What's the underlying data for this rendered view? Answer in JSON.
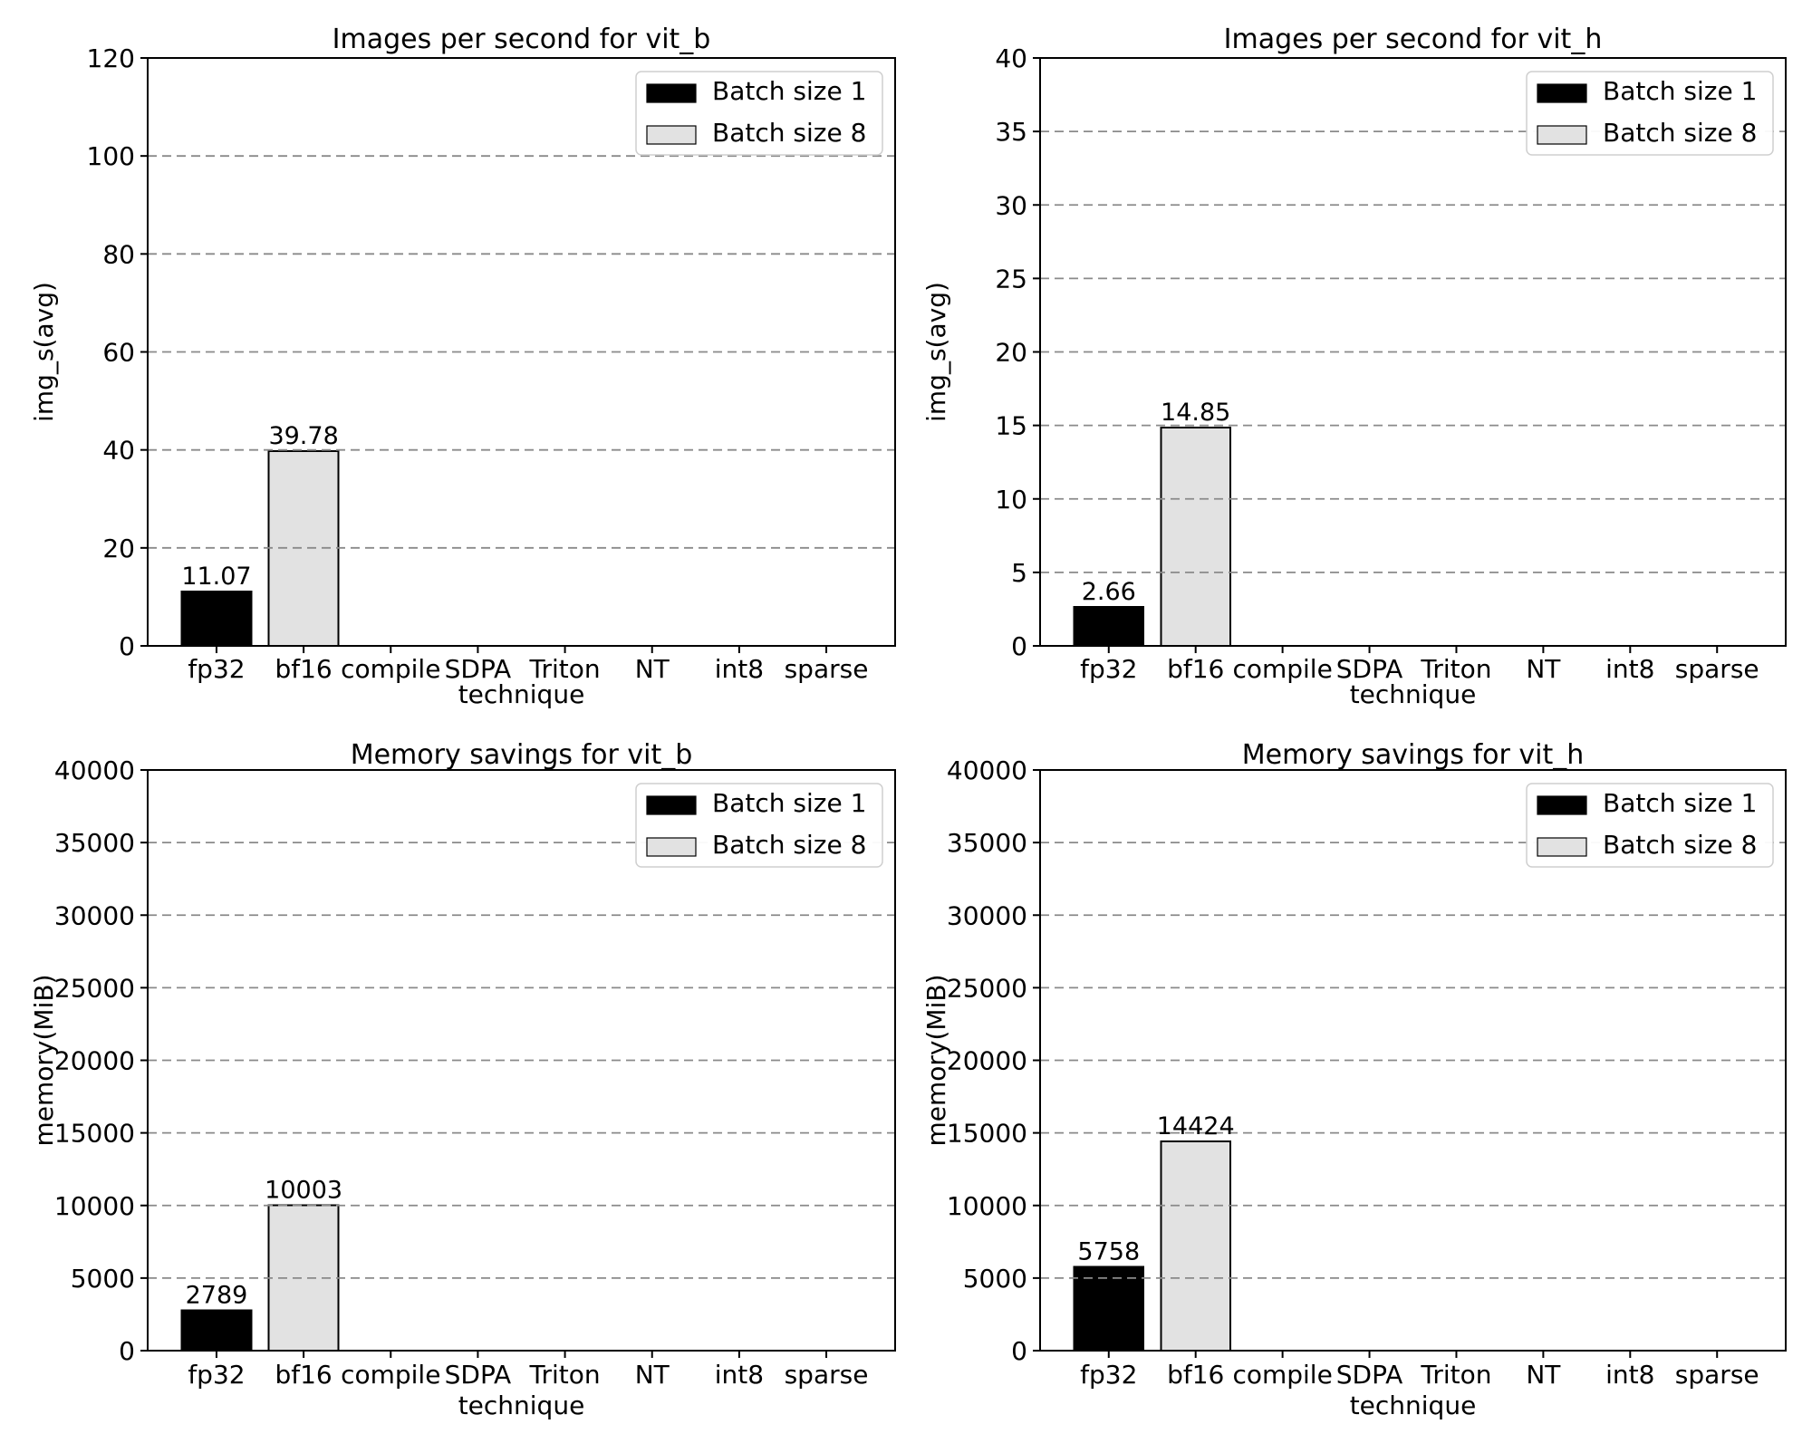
{
  "figure": {
    "background": "#ffffff",
    "text_color": "#000000",
    "grid_color": "#8a8a8a",
    "frame_color": "#000000"
  },
  "legend": {
    "entries": [
      {
        "label": "Batch size 1",
        "color": "#000000"
      },
      {
        "label": "Batch size 8",
        "color": "#e2e2e2"
      }
    ],
    "position": "upper right"
  },
  "chart_data": [
    {
      "type": "bar",
      "title": "Images per second for vit_b",
      "xlabel": "technique",
      "ylabel": "img_s(avg)",
      "categories": [
        "fp32",
        "bf16",
        "compile",
        "SDPA",
        "Triton",
        "NT",
        "int8",
        "sparse"
      ],
      "ylim": [
        0,
        120
      ],
      "ytick_step": 20,
      "grid": "dashed",
      "legend_position": "upper right",
      "series": [
        {
          "name": "Batch size 1",
          "color": "#000000",
          "values": [
            11.07,
            null,
            null,
            null,
            null,
            null,
            null,
            null
          ],
          "labels": [
            "11.07",
            null,
            null,
            null,
            null,
            null,
            null,
            null
          ]
        },
        {
          "name": "Batch size 8",
          "color": "#e2e2e2",
          "values": [
            null,
            39.78,
            null,
            null,
            null,
            null,
            null,
            null
          ],
          "labels": [
            null,
            "39.78",
            null,
            null,
            null,
            null,
            null,
            null
          ]
        }
      ]
    },
    {
      "type": "bar",
      "title": "Images per second for vit_h",
      "xlabel": "technique",
      "ylabel": "img_s(avg)",
      "categories": [
        "fp32",
        "bf16",
        "compile",
        "SDPA",
        "Triton",
        "NT",
        "int8",
        "sparse"
      ],
      "ylim": [
        0,
        40
      ],
      "ytick_step": 5,
      "grid": "dashed",
      "legend_position": "upper right",
      "series": [
        {
          "name": "Batch size 1",
          "color": "#000000",
          "values": [
            2.66,
            null,
            null,
            null,
            null,
            null,
            null,
            null
          ],
          "labels": [
            "2.66",
            null,
            null,
            null,
            null,
            null,
            null,
            null
          ]
        },
        {
          "name": "Batch size 8",
          "color": "#e2e2e2",
          "values": [
            null,
            14.85,
            null,
            null,
            null,
            null,
            null,
            null
          ],
          "labels": [
            null,
            "14.85",
            null,
            null,
            null,
            null,
            null,
            null
          ]
        }
      ]
    },
    {
      "type": "bar",
      "title": "Memory savings for vit_b",
      "xlabel": "technique",
      "ylabel": "memory(MiB)",
      "categories": [
        "fp32",
        "bf16",
        "compile",
        "SDPA",
        "Triton",
        "NT",
        "int8",
        "sparse"
      ],
      "ylim": [
        0,
        40000
      ],
      "ytick_step": 5000,
      "grid": "dashed",
      "legend_position": "upper right",
      "series": [
        {
          "name": "Batch size 1",
          "color": "#000000",
          "values": [
            2789,
            null,
            null,
            null,
            null,
            null,
            null,
            null
          ],
          "labels": [
            "2789",
            null,
            null,
            null,
            null,
            null,
            null,
            null
          ]
        },
        {
          "name": "Batch size 8",
          "color": "#e2e2e2",
          "values": [
            null,
            10003,
            null,
            null,
            null,
            null,
            null,
            null
          ],
          "labels": [
            null,
            "10003",
            null,
            null,
            null,
            null,
            null,
            null
          ]
        }
      ]
    },
    {
      "type": "bar",
      "title": "Memory savings for vit_h",
      "xlabel": "technique",
      "ylabel": "memory(MiB)",
      "categories": [
        "fp32",
        "bf16",
        "compile",
        "SDPA",
        "Triton",
        "NT",
        "int8",
        "sparse"
      ],
      "ylim": [
        0,
        40000
      ],
      "ytick_step": 5000,
      "grid": "dashed",
      "legend_position": "upper right",
      "series": [
        {
          "name": "Batch size 1",
          "color": "#000000",
          "values": [
            5758,
            null,
            null,
            null,
            null,
            null,
            null,
            null
          ],
          "labels": [
            "5758",
            null,
            null,
            null,
            null,
            null,
            null,
            null
          ]
        },
        {
          "name": "Batch size 8",
          "color": "#e2e2e2",
          "values": [
            null,
            14424,
            null,
            null,
            null,
            null,
            null,
            null
          ],
          "labels": [
            null,
            "14424",
            null,
            null,
            null,
            null,
            null,
            null
          ]
        }
      ]
    }
  ]
}
